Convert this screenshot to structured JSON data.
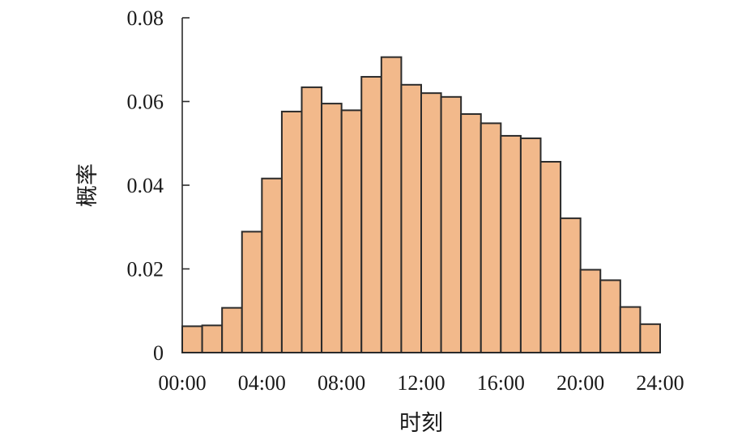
{
  "chart_data": {
    "type": "bar",
    "title": "",
    "xlabel": "时刻",
    "ylabel": "概率",
    "x_tick_labels": [
      "00:00",
      "04:00",
      "08:00",
      "12:00",
      "16:00",
      "20:00",
      "24:00"
    ],
    "y_tick_labels": [
      "0",
      "0.02",
      "0.04",
      "0.06",
      "0.08"
    ],
    "y_ticks": [
      0,
      0.02,
      0.04,
      0.06,
      0.08
    ],
    "xlim": [
      0,
      24
    ],
    "ylim": [
      0,
      0.08
    ],
    "bin_width_hours": 1,
    "values": [
      0.0063,
      0.0065,
      0.0107,
      0.0289,
      0.0416,
      0.0576,
      0.0634,
      0.0595,
      0.0579,
      0.0659,
      0.0706,
      0.064,
      0.062,
      0.0611,
      0.057,
      0.0548,
      0.0518,
      0.0512,
      0.0456,
      0.0321,
      0.0198,
      0.0173,
      0.0109,
      0.0068
    ],
    "bar_color": "#f2b98b",
    "edge_color": "#2b2b2b",
    "grid": false,
    "legend": "none"
  }
}
